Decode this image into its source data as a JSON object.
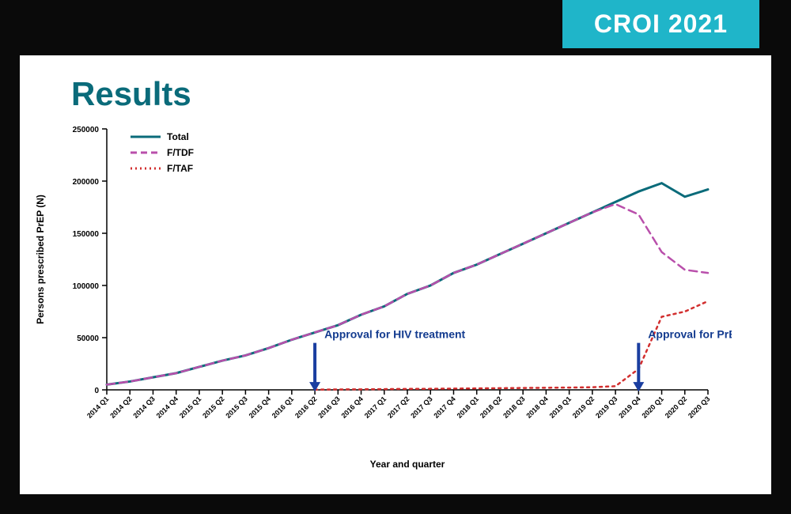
{
  "badge": "CROI 2021",
  "title": "Results",
  "chart": {
    "type": "line",
    "background_color": "#ffffff",
    "plot_bg": "#ffffff",
    "title_fontsize": 42,
    "title_color": "#0a6b7a",
    "xlabel": "Year and quarter",
    "ylabel": "Persons prescribed PrEP (N)",
    "label_fontsize": 12,
    "tick_fontsize": 10,
    "ylim": [
      0,
      250000
    ],
    "ytick_step": 50000,
    "yticks": [
      0,
      50000,
      100000,
      150000,
      200000,
      250000
    ],
    "categories": [
      "2014 Q1",
      "2014 Q2",
      "2014 Q3",
      "2014 Q4",
      "2015 Q1",
      "2015 Q2",
      "2015 Q3",
      "2015 Q4",
      "2016 Q1",
      "2016 Q2",
      "2016 Q3",
      "2016 Q4",
      "2017 Q1",
      "2017 Q2",
      "2017 Q3",
      "2017 Q4",
      "2018 Q1",
      "2018 Q2",
      "2018 Q3",
      "2018 Q4",
      "2019 Q1",
      "2019 Q2",
      "2019 Q3",
      "2019 Q4",
      "2020 Q1",
      "2020 Q2",
      "2020 Q3"
    ],
    "series": [
      {
        "name": "Total",
        "color": "#0a6b7a",
        "dash": "solid",
        "line_width": 3,
        "values": [
          5000,
          8000,
          12000,
          16000,
          22000,
          28000,
          33000,
          40000,
          48000,
          55000,
          62000,
          72000,
          80000,
          92000,
          100000,
          112000,
          120000,
          130000,
          140000,
          150000,
          160000,
          170000,
          180000,
          190000,
          198000,
          185000,
          192000
        ]
      },
      {
        "name": "F/TDF",
        "color": "#b94fab",
        "dash": "dashed",
        "line_width": 2.5,
        "values": [
          5000,
          8000,
          12000,
          16000,
          22000,
          28000,
          33000,
          40000,
          48000,
          55000,
          62000,
          72000,
          80000,
          92000,
          100000,
          112000,
          120000,
          130000,
          140000,
          150000,
          160000,
          170000,
          178000,
          168000,
          132000,
          115000,
          112000
        ]
      },
      {
        "name": "F/TAF",
        "color": "#d22f2f",
        "dash": "dotted",
        "line_width": 2.5,
        "values": [
          null,
          null,
          null,
          null,
          null,
          null,
          null,
          null,
          null,
          200,
          400,
          500,
          700,
          900,
          1000,
          1200,
          1400,
          1600,
          1800,
          2000,
          2200,
          2500,
          3500,
          20000,
          70000,
          75000,
          85000
        ]
      }
    ],
    "annotations": [
      {
        "label": "Approval for HIV treatment",
        "x_index": 9,
        "color": "#1a3ea0",
        "arrow_color": "#1a3ea0"
      },
      {
        "label": "Approval for PrEP",
        "x_index": 23,
        "color": "#1a3ea0",
        "arrow_color": "#1a3ea0"
      }
    ],
    "axis_color": "#000000",
    "legend_position": "upper-left"
  }
}
